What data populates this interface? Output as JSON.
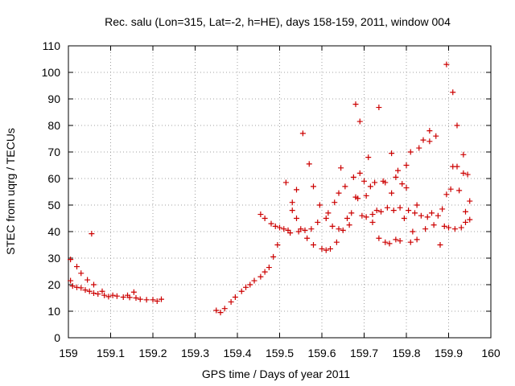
{
  "chart_data": {
    "type": "scatter",
    "title": "Rec. salu (Lon=315, Lat=-2, h=HE), days 158-159, 2011, window 004",
    "xlabel": "GPS time / Days of year 2011",
    "ylabel": "STEC from uqrg / TECUs",
    "xlim": [
      159,
      160
    ],
    "ylim": [
      0,
      110
    ],
    "xticks": [
      "159",
      "159.1",
      "159.2",
      "159.3",
      "159.4",
      "159.5",
      "159.6",
      "159.7",
      "159.8",
      "159.9",
      "160"
    ],
    "yticks": [
      "0",
      "10",
      "20",
      "30",
      "40",
      "50",
      "60",
      "70",
      "80",
      "90",
      "100",
      "110"
    ],
    "grid": true,
    "marker": "+",
    "color": "#cc0000",
    "points": [
      [
        159.005,
        29.5
      ],
      [
        159.005,
        21.5
      ],
      [
        159.01,
        19.5
      ],
      [
        159.02,
        26.8
      ],
      [
        159.02,
        19.0
      ],
      [
        159.03,
        24.3
      ],
      [
        159.03,
        18.8
      ],
      [
        159.04,
        18.0
      ],
      [
        159.045,
        21.8
      ],
      [
        159.05,
        17.5
      ],
      [
        159.055,
        39.2
      ],
      [
        159.06,
        20.0
      ],
      [
        159.06,
        16.8
      ],
      [
        159.07,
        16.5
      ],
      [
        159.08,
        17.5
      ],
      [
        159.085,
        16.0
      ],
      [
        159.095,
        15.5
      ],
      [
        159.105,
        16.0
      ],
      [
        159.115,
        15.7
      ],
      [
        159.13,
        15.3
      ],
      [
        159.14,
        16.0
      ],
      [
        159.145,
        15.2
      ],
      [
        159.155,
        17.2
      ],
      [
        159.16,
        15.0
      ],
      [
        159.17,
        14.5
      ],
      [
        159.185,
        14.3
      ],
      [
        159.2,
        14.3
      ],
      [
        159.21,
        13.8
      ],
      [
        159.22,
        14.5
      ],
      [
        159.35,
        10.3
      ],
      [
        159.36,
        9.5
      ],
      [
        159.37,
        11.0
      ],
      [
        159.385,
        13.5
      ],
      [
        159.395,
        15.3
      ],
      [
        159.41,
        17.5
      ],
      [
        159.42,
        19.0
      ],
      [
        159.43,
        20.0
      ],
      [
        159.44,
        21.5
      ],
      [
        159.455,
        23.0
      ],
      [
        159.465,
        24.8
      ],
      [
        159.475,
        26.5
      ],
      [
        159.485,
        30.5
      ],
      [
        159.495,
        35.0
      ],
      [
        159.455,
        46.5
      ],
      [
        159.465,
        45.0
      ],
      [
        159.48,
        43.0
      ],
      [
        159.49,
        42.0
      ],
      [
        159.5,
        41.5
      ],
      [
        159.51,
        41.0
      ],
      [
        159.515,
        58.5
      ],
      [
        159.52,
        40.5
      ],
      [
        159.525,
        39.5
      ],
      [
        159.53,
        51.0
      ],
      [
        159.53,
        48.0
      ],
      [
        159.54,
        45.0
      ],
      [
        159.54,
        55.8
      ],
      [
        159.545,
        40.0
      ],
      [
        159.55,
        41.0
      ],
      [
        159.555,
        77.0
      ],
      [
        159.56,
        40.5
      ],
      [
        159.565,
        37.5
      ],
      [
        159.57,
        65.5
      ],
      [
        159.575,
        41.0
      ],
      [
        159.58,
        35.0
      ],
      [
        159.58,
        57.0
      ],
      [
        159.59,
        43.5
      ],
      [
        159.595,
        50.0
      ],
      [
        159.6,
        33.5
      ],
      [
        159.61,
        33.0
      ],
      [
        159.61,
        45.0
      ],
      [
        159.615,
        47.0
      ],
      [
        159.62,
        33.5
      ],
      [
        159.625,
        42.0
      ],
      [
        159.63,
        51.0
      ],
      [
        159.635,
        36.0
      ],
      [
        159.64,
        41.0
      ],
      [
        159.64,
        54.5
      ],
      [
        159.645,
        64.0
      ],
      [
        159.65,
        40.5
      ],
      [
        159.655,
        57.0
      ],
      [
        159.66,
        45.0
      ],
      [
        159.665,
        42.5
      ],
      [
        159.67,
        47.0
      ],
      [
        159.675,
        60.5
      ],
      [
        159.68,
        88.0
      ],
      [
        159.68,
        53.0
      ],
      [
        159.685,
        52.5
      ],
      [
        159.69,
        62.0
      ],
      [
        159.69,
        81.5
      ],
      [
        159.695,
        46.0
      ],
      [
        159.7,
        59.0
      ],
      [
        159.705,
        45.5
      ],
      [
        159.705,
        53.5
      ],
      [
        159.71,
        68.0
      ],
      [
        159.715,
        57.0
      ],
      [
        159.72,
        46.5
      ],
      [
        159.72,
        43.5
      ],
      [
        159.725,
        58.5
      ],
      [
        159.73,
        48.0
      ],
      [
        159.735,
        86.8
      ],
      [
        159.735,
        37.5
      ],
      [
        159.74,
        47.5
      ],
      [
        159.745,
        59.0
      ],
      [
        159.75,
        58.5
      ],
      [
        159.75,
        36.0
      ],
      [
        159.755,
        49.0
      ],
      [
        159.76,
        35.5
      ],
      [
        159.765,
        54.5
      ],
      [
        159.765,
        69.5
      ],
      [
        159.77,
        48.0
      ],
      [
        159.775,
        37.0
      ],
      [
        159.775,
        60.5
      ],
      [
        159.78,
        63.0
      ],
      [
        159.785,
        49.0
      ],
      [
        159.785,
        36.5
      ],
      [
        159.79,
        58.0
      ],
      [
        159.795,
        45.0
      ],
      [
        159.8,
        56.5
      ],
      [
        159.8,
        65.0
      ],
      [
        159.805,
        48.0
      ],
      [
        159.81,
        36.0
      ],
      [
        159.81,
        70.0
      ],
      [
        159.815,
        40.0
      ],
      [
        159.82,
        47.0
      ],
      [
        159.825,
        50.0
      ],
      [
        159.825,
        37.0
      ],
      [
        159.83,
        71.5
      ],
      [
        159.835,
        46.0
      ],
      [
        159.84,
        74.5
      ],
      [
        159.845,
        41.0
      ],
      [
        159.85,
        45.5
      ],
      [
        159.855,
        74.0
      ],
      [
        159.855,
        78.0
      ],
      [
        159.86,
        47.0
      ],
      [
        159.865,
        42.5
      ],
      [
        159.87,
        76.0
      ],
      [
        159.875,
        46.0
      ],
      [
        159.88,
        35.0
      ],
      [
        159.885,
        48.5
      ],
      [
        159.89,
        42.0
      ],
      [
        159.895,
        54.0
      ],
      [
        159.895,
        103.0
      ],
      [
        159.9,
        41.5
      ],
      [
        159.905,
        56.0
      ],
      [
        159.91,
        92.5
      ],
      [
        159.91,
        64.5
      ],
      [
        159.915,
        41.0
      ],
      [
        159.92,
        64.5
      ],
      [
        159.92,
        80.0
      ],
      [
        159.925,
        55.5
      ],
      [
        159.93,
        41.5
      ],
      [
        159.935,
        62.0
      ],
      [
        159.935,
        69.0
      ],
      [
        159.94,
        47.5
      ],
      [
        159.94,
        43.5
      ],
      [
        159.945,
        61.5
      ],
      [
        159.95,
        51.5
      ],
      [
        159.95,
        44.5
      ]
    ]
  }
}
